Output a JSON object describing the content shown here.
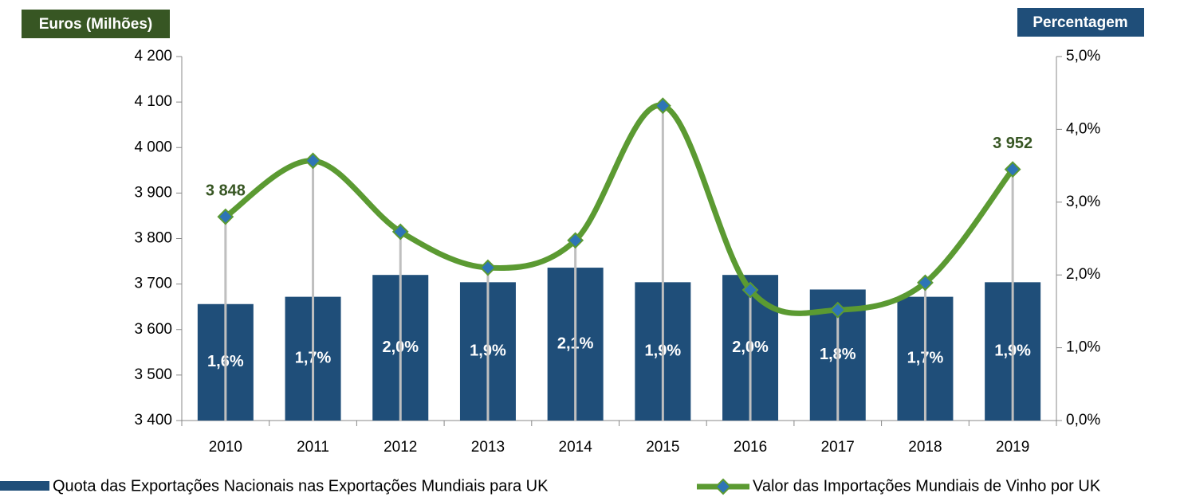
{
  "chart_data": {
    "type": "bar-line",
    "y_axis_label": "Euros (Milhões)",
    "y2_axis_label": "Percentagem",
    "categories": [
      "2010",
      "2011",
      "2012",
      "2013",
      "2014",
      "2015",
      "2016",
      "2017",
      "2018",
      "2019"
    ],
    "series": [
      {
        "name": "Quota das Exportações Nacionais nas Exportações Mundiais para UK",
        "type": "bar",
        "axis": "y2",
        "color": "#1f4e79",
        "values": [
          1.6,
          1.7,
          2.0,
          1.9,
          2.1,
          1.9,
          2.0,
          1.8,
          1.7,
          1.9
        ],
        "value_labels": [
          "1,6%",
          "1,7%",
          "2,0%",
          "1,9%",
          "2,1%",
          "1,9%",
          "2,0%",
          "1,8%",
          "1,7%",
          "1,9%"
        ]
      },
      {
        "name": "Valor das Importações Mundiais de Vinho por UK",
        "type": "line",
        "axis": "y",
        "color": "#5b9a32",
        "marker_color": "#2e75b6",
        "values": [
          3848,
          3971,
          3815,
          3736,
          3796,
          4092,
          3687,
          3643,
          3703,
          3952
        ],
        "value_labels": [
          "3 848",
          null,
          null,
          null,
          null,
          null,
          null,
          null,
          null,
          "3 952"
        ]
      }
    ],
    "ylim": [
      3400,
      4200
    ],
    "yticks": [
      {
        "value": 3400,
        "label": "3 400"
      },
      {
        "value": 3500,
        "label": "3 500"
      },
      {
        "value": 3600,
        "label": "3 600"
      },
      {
        "value": 3700,
        "label": "3 700"
      },
      {
        "value": 3800,
        "label": "3 800"
      },
      {
        "value": 3900,
        "label": "3 900"
      },
      {
        "value": 4000,
        "label": "4 000"
      },
      {
        "value": 4100,
        "label": "4 100"
      },
      {
        "value": 4200,
        "label": "4 200"
      }
    ],
    "y2lim": [
      0,
      5
    ],
    "y2ticks": [
      {
        "value": 0,
        "label": "0,0%"
      },
      {
        "value": 1,
        "label": "1,0%"
      },
      {
        "value": 2,
        "label": "2,0%"
      },
      {
        "value": 3,
        "label": "3,0%"
      },
      {
        "value": 4,
        "label": "4,0%"
      },
      {
        "value": 5,
        "label": "5,0%"
      }
    ],
    "legend": "bottom"
  }
}
